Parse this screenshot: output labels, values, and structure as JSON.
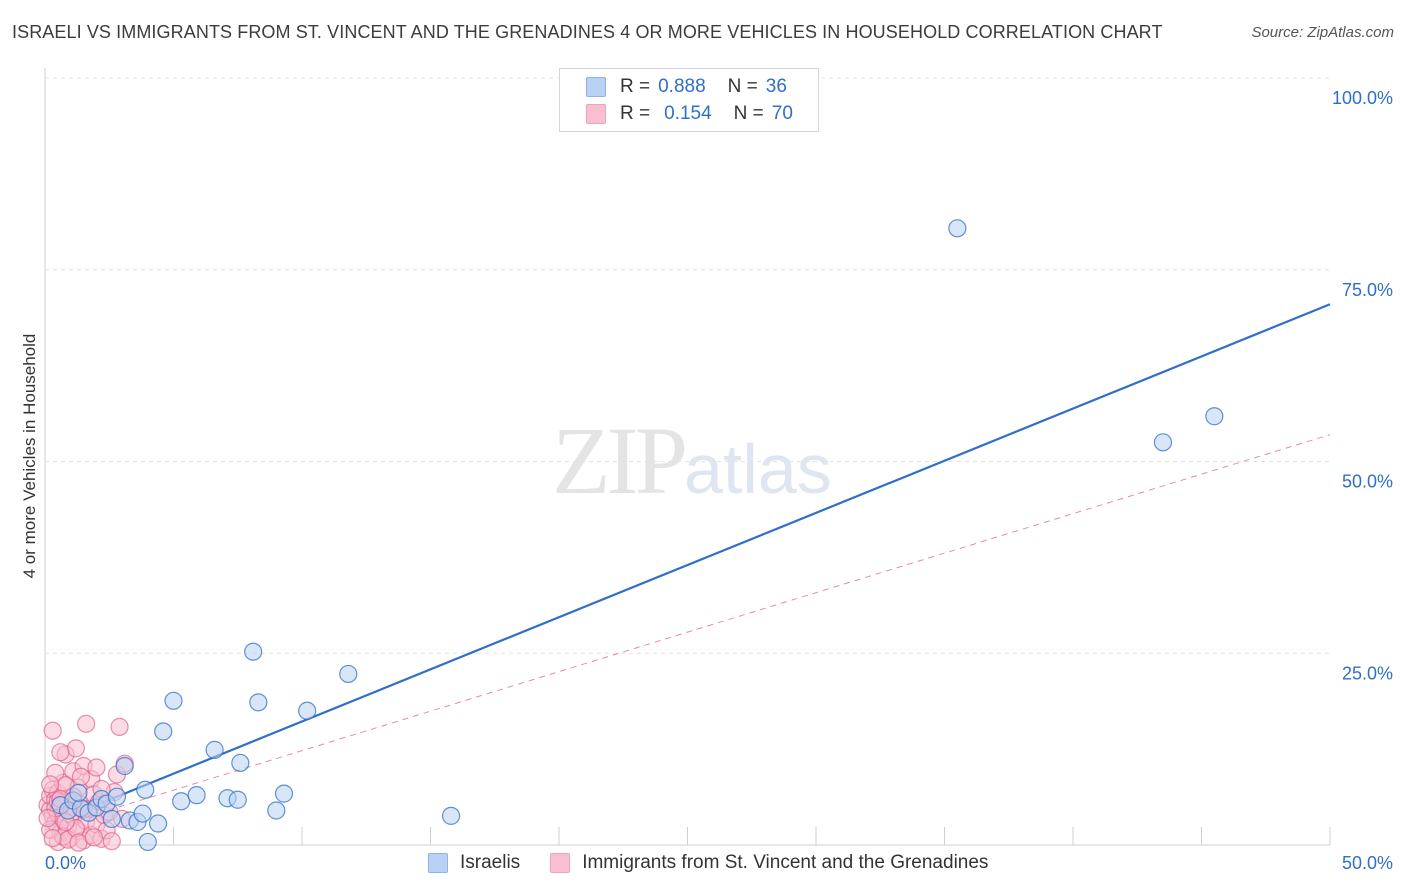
{
  "header": {
    "title": "ISRAELI VS IMMIGRANTS FROM ST. VINCENT AND THE GRENADINES 4 OR MORE VEHICLES IN HOUSEHOLD CORRELATION CHART",
    "source": "Source: ZipAtlas.com"
  },
  "watermark": {
    "zip": "ZIP",
    "atlas": "atlas"
  },
  "legend": {
    "r_label": "R =",
    "n_label": "N =",
    "series1": {
      "r": "0.888",
      "n": "36"
    },
    "series2": {
      "r": "0.154",
      "n": "70"
    }
  },
  "colors": {
    "blue": "#2f6fc7",
    "blue_fill": "#b9d1f3",
    "pink": "#e0608c",
    "pink_fill": "#f7bfd0"
  },
  "chart_data": {
    "type": "scatter",
    "title": "ISRAELI VS IMMIGRANTS FROM ST. VINCENT AND THE GRENADINES 4 OR MORE VEHICLES IN HOUSEHOLD CORRELATION CHART",
    "xlabel": "",
    "ylabel": "4 or more Vehicles in Household",
    "xlim": [
      0,
      50
    ],
    "ylim": [
      0,
      100
    ],
    "x_tick_labels": [
      "0.0%",
      "50.0%"
    ],
    "y_ticks": [
      25,
      50,
      75,
      100
    ],
    "y_tick_labels": [
      "25.0%",
      "50.0%",
      "75.0%",
      "100.0%"
    ],
    "grid": true,
    "legend_position": "top-center",
    "series": [
      {
        "name": "Israelis",
        "r": 0.888,
        "n": 36,
        "trend": {
          "x0": 0,
          "y0": 2.5,
          "x1": 50,
          "y1": 70.5,
          "style": "solid"
        },
        "points": [
          [
            0.6,
            5.2
          ],
          [
            0.9,
            4.5
          ],
          [
            1.1,
            5.8
          ],
          [
            1.4,
            4.8
          ],
          [
            1.7,
            4.2
          ],
          [
            2.0,
            4.9
          ],
          [
            2.2,
            6.0
          ],
          [
            2.4,
            5.4
          ],
          [
            2.8,
            6.3
          ],
          [
            3.1,
            10.3
          ],
          [
            3.3,
            3.2
          ],
          [
            3.6,
            3.0
          ],
          [
            3.8,
            4.1
          ],
          [
            3.9,
            7.2
          ],
          [
            4.4,
            2.8
          ],
          [
            4.6,
            14.8
          ],
          [
            5.0,
            18.8
          ],
          [
            5.3,
            5.7
          ],
          [
            5.9,
            6.5
          ],
          [
            6.6,
            12.4
          ],
          [
            7.1,
            6.1
          ],
          [
            7.5,
            5.9
          ],
          [
            7.6,
            10.7
          ],
          [
            8.1,
            25.2
          ],
          [
            8.3,
            18.6
          ],
          [
            9.3,
            6.7
          ],
          [
            10.2,
            17.5
          ],
          [
            11.8,
            22.3
          ],
          [
            15.8,
            3.8
          ],
          [
            4.0,
            0.4
          ],
          [
            2.6,
            3.4
          ],
          [
            1.3,
            6.8
          ],
          [
            35.5,
            80.4
          ],
          [
            43.5,
            52.5
          ],
          [
            45.5,
            55.9
          ],
          [
            9.0,
            4.5
          ]
        ]
      },
      {
        "name": "Immigrants from St. Vincent and the Grenadines",
        "r": 0.154,
        "n": 70,
        "trend": {
          "x0": 0,
          "y0": 2.0,
          "x1": 50,
          "y1": 53.5,
          "style": "dashed"
        },
        "points": [
          [
            0.1,
            5.2
          ],
          [
            0.2,
            4.6
          ],
          [
            0.2,
            6.4
          ],
          [
            0.3,
            3.8
          ],
          [
            0.3,
            7.2
          ],
          [
            0.4,
            5.9
          ],
          [
            0.4,
            2.9
          ],
          [
            0.5,
            4.1
          ],
          [
            0.5,
            6.8
          ],
          [
            0.6,
            5.5
          ],
          [
            0.6,
            1.6
          ],
          [
            0.7,
            3.3
          ],
          [
            0.7,
            8.1
          ],
          [
            0.8,
            4.9
          ],
          [
            0.8,
            11.8
          ],
          [
            0.9,
            2.4
          ],
          [
            0.9,
            6.1
          ],
          [
            1.0,
            5.0
          ],
          [
            1.0,
            0.9
          ],
          [
            1.1,
            3.6
          ],
          [
            1.1,
            9.6
          ],
          [
            1.2,
            4.4
          ],
          [
            1.2,
            12.6
          ],
          [
            1.3,
            1.8
          ],
          [
            1.3,
            7.5
          ],
          [
            1.4,
            5.3
          ],
          [
            1.5,
            10.3
          ],
          [
            1.5,
            0.6
          ],
          [
            1.6,
            3.1
          ],
          [
            1.6,
            15.8
          ],
          [
            1.7,
            4.7
          ],
          [
            1.8,
            8.6
          ],
          [
            1.8,
            1.3
          ],
          [
            1.9,
            6.6
          ],
          [
            2.0,
            2.7
          ],
          [
            2.0,
            10.1
          ],
          [
            2.1,
            5.6
          ],
          [
            2.2,
            0.8
          ],
          [
            2.3,
            3.9
          ],
          [
            2.4,
            1.9
          ],
          [
            2.5,
            4.3
          ],
          [
            2.6,
            0.5
          ],
          [
            2.7,
            6.9
          ],
          [
            2.8,
            9.2
          ],
          [
            2.9,
            15.4
          ],
          [
            3.0,
            3.4
          ],
          [
            3.1,
            10.6
          ],
          [
            0.3,
            14.9
          ],
          [
            0.4,
            9.4
          ],
          [
            0.5,
            0.4
          ],
          [
            0.6,
            12.1
          ],
          [
            0.7,
            1.1
          ],
          [
            0.8,
            7.8
          ],
          [
            0.9,
            0.7
          ],
          [
            1.0,
            4.0
          ],
          [
            1.1,
            6.3
          ],
          [
            1.2,
            2.2
          ],
          [
            1.3,
            0.3
          ],
          [
            1.4,
            8.9
          ],
          [
            1.5,
            4.6
          ],
          [
            0.2,
            2.0
          ],
          [
            0.3,
            0.9
          ],
          [
            0.4,
            4.8
          ],
          [
            0.5,
            5.7
          ],
          [
            0.1,
            3.5
          ],
          [
            0.2,
            7.9
          ],
          [
            1.9,
            1.0
          ],
          [
            2.2,
            7.3
          ],
          [
            0.6,
            6.0
          ],
          [
            0.8,
            3.0
          ]
        ]
      }
    ]
  },
  "bottom_legend": {
    "item1": "Israelis",
    "item2": "Immigrants from St. Vincent and the Grenadines"
  }
}
